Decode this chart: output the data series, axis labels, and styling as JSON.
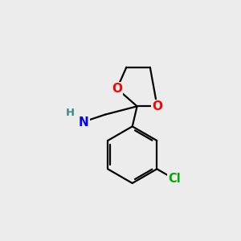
{
  "background_color": "#ececec",
  "bond_color": "#000000",
  "bond_width": 1.6,
  "atom_colors": {
    "O": "#ff0000",
    "N": "#0000ff",
    "Cl": "#00aa00",
    "C": "#000000",
    "H": "#3a8a8a"
  },
  "font_size_atom": 11,
  "font_size_small": 9.5,
  "qx": 5.7,
  "qy": 5.6,
  "o1x": 4.85,
  "o1y": 6.35,
  "o2x": 6.55,
  "o2y": 5.6,
  "c3x": 6.25,
  "c3y": 7.25,
  "c4x": 5.25,
  "c4y": 7.25,
  "bx": 5.5,
  "by": 3.55,
  "br": 1.2,
  "ch2x": 4.35,
  "ch2y": 5.25,
  "nh2x": 3.3,
  "nh2y": 4.9
}
